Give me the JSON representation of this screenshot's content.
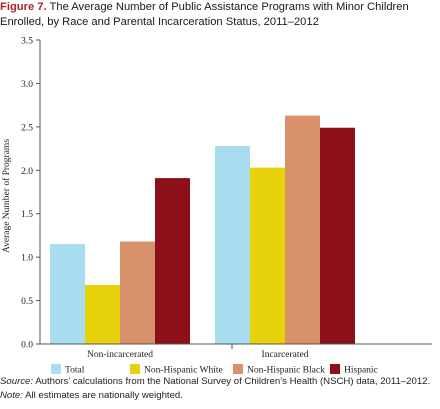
{
  "title": {
    "figure_label": "Figure 7.",
    "text": "The Average Number of Public Assistance Programs with Minor Children Enrolled, by Race and Parental Incarceration Status, 2011–2012"
  },
  "chart_data": {
    "type": "bar",
    "categories": [
      "Non-incarcerated",
      "Incarcerated"
    ],
    "series": [
      {
        "name": "Total",
        "values": [
          1.15,
          2.28
        ],
        "color": "#a8dcef"
      },
      {
        "name": "Non-Hispanic White",
        "values": [
          0.68,
          2.03
        ],
        "color": "#e5d20a"
      },
      {
        "name": "Non-Hispanic Black",
        "values": [
          1.18,
          2.63
        ],
        "color": "#d8916a"
      },
      {
        "name": "Hispanic",
        "values": [
          1.91,
          2.49
        ],
        "color": "#8b1018"
      }
    ],
    "ylabel": "Average Number of Programs",
    "ylim": [
      0,
      3.5
    ],
    "yticks": [
      "0.0",
      "0.5",
      "1.0",
      "1.5",
      "2.0",
      "2.5",
      "3.0",
      "3.5"
    ],
    "legend_position": "bottom",
    "grid": false
  },
  "footnote": {
    "source_label": "Source:",
    "source_text": "Authors’ calculations from the National Survey of Children’s Health (NSCH) data, 2011–2012.",
    "note_label": "Note:",
    "note_text": "All estimates are nationally weighted."
  }
}
